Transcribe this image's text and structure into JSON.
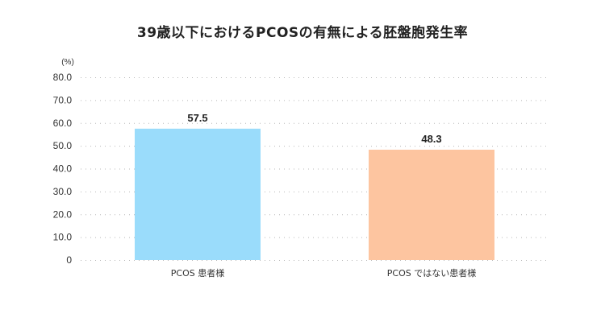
{
  "chart_data": {
    "type": "bar",
    "title": "39歳以下におけるPCOSの有無による胚盤胞発生率",
    "unit_label": "(%)",
    "categories": [
      "PCOS 患者様",
      "PCOS ではない患者様"
    ],
    "values": [
      57.5,
      48.3
    ],
    "data_labels": [
      "57.5",
      "48.3"
    ],
    "ylim": [
      0,
      80
    ],
    "yticks": [
      0,
      10,
      20,
      30,
      40,
      50,
      60,
      70,
      80
    ],
    "ytick_labels": [
      "0",
      "10.0",
      "20.0",
      "30.0",
      "40.0",
      "50.0",
      "60.0",
      "70.0",
      "80.0"
    ],
    "grid": true,
    "bar_colors": [
      "#9adcfb",
      "#fdc5a0"
    ]
  }
}
